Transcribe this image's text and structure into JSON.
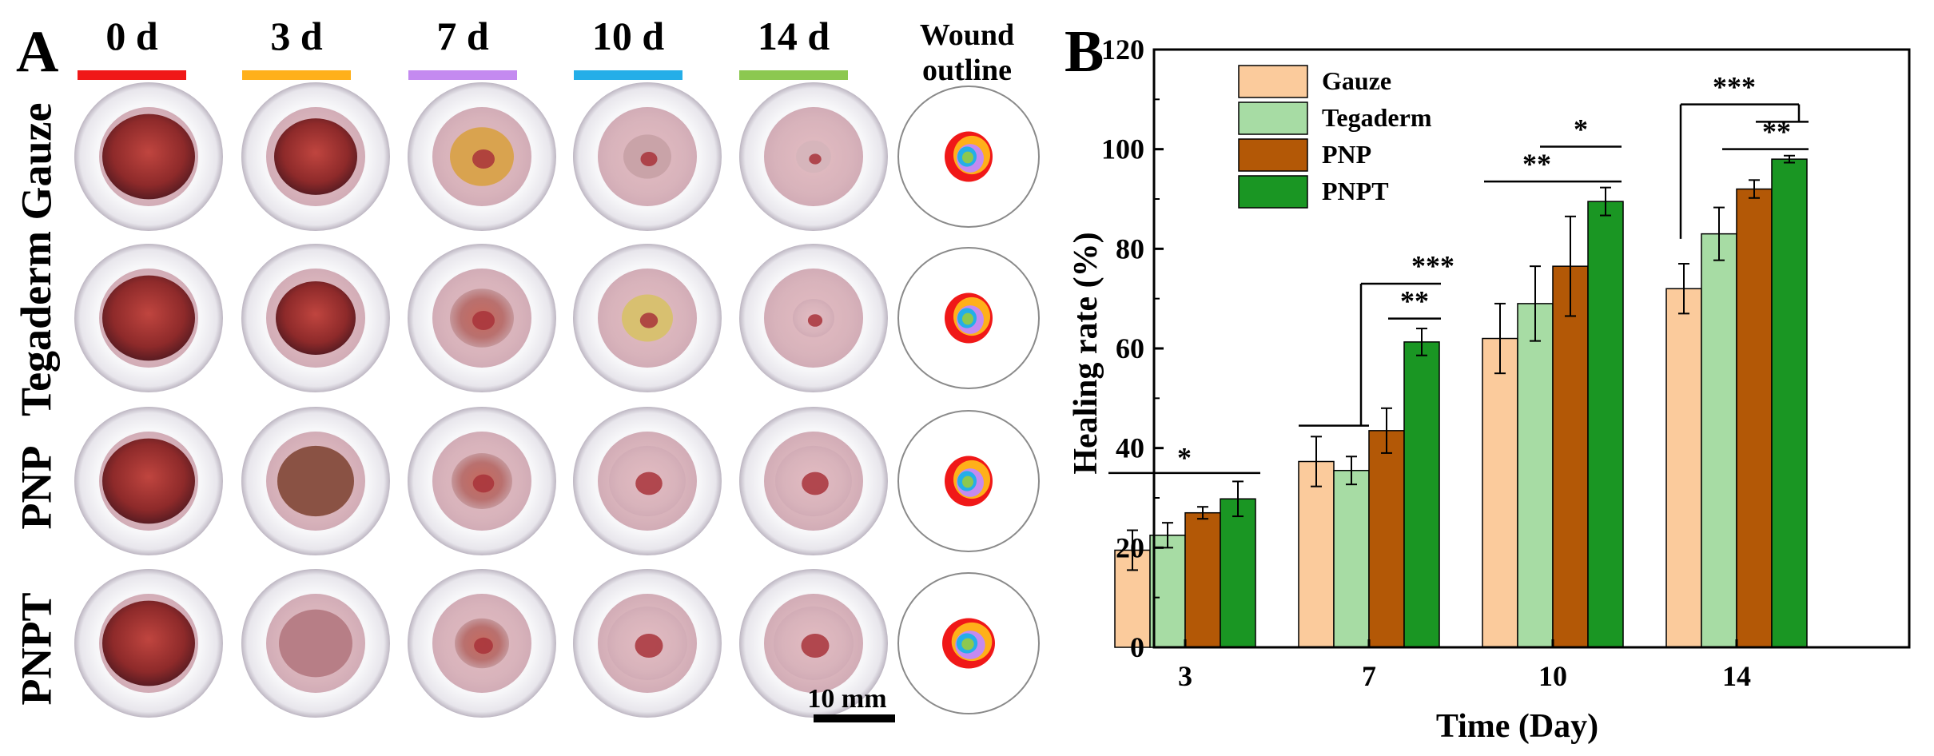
{
  "panel_a": {
    "letter": "A",
    "day_columns": [
      {
        "label": "0 d",
        "color": "#f01818"
      },
      {
        "label": "3 d",
        "color": "#ffb01a"
      },
      {
        "label": "7 d",
        "color": "#c48af0"
      },
      {
        "label": "10 d",
        "color": "#24aee8"
      },
      {
        "label": "14 d",
        "color": "#8cc850"
      }
    ],
    "outline_title_line1": "Wound",
    "outline_title_line2": "outline",
    "rows": [
      "Gauze",
      "Tegaderm",
      "PNP",
      "PNPT"
    ],
    "scale_bar_label": "10 mm"
  },
  "panel_b": {
    "letter": "B"
  },
  "chart_data": {
    "type": "bar",
    "title": "",
    "xlabel": "Time (Day)",
    "ylabel": "Healing rate (%)",
    "categories": [
      "3",
      "7",
      "10",
      "14"
    ],
    "ylim": [
      0,
      120
    ],
    "yticks": [
      0,
      20,
      40,
      60,
      80,
      100,
      120
    ],
    "legend_position": "top-left",
    "series": [
      {
        "name": "Gauze",
        "color": "#fbcb9c",
        "values": [
          19.5,
          37.3,
          62.0,
          72.0
        ],
        "errors": [
          4.0,
          5.0,
          7.0,
          5.0
        ]
      },
      {
        "name": "Tegaderm",
        "color": "#a7dca4",
        "values": [
          22.5,
          35.5,
          69.0,
          83.0
        ],
        "errors": [
          2.5,
          2.8,
          7.5,
          5.3
        ]
      },
      {
        "name": "PNP",
        "color": "#b35806",
        "values": [
          27.0,
          43.5,
          76.5,
          92.0
        ],
        "errors": [
          1.2,
          4.5,
          10.0,
          1.8
        ]
      },
      {
        "name": "PNPT",
        "color": "#1a9623",
        "values": [
          29.8,
          61.3,
          89.5,
          98.0
        ],
        "errors": [
          3.5,
          2.7,
          2.8,
          0.7
        ]
      }
    ],
    "significance": [
      {
        "category": "3",
        "label": "*",
        "from_series": "Gauze",
        "to_series": "PNPT"
      },
      {
        "category": "7",
        "label": "***",
        "from_series": "Gauze,Tegaderm",
        "to_series": "PNPT"
      },
      {
        "category": "7",
        "label": "**",
        "from_series": "PNP",
        "to_series": "PNPT"
      },
      {
        "category": "10",
        "label": "*",
        "from_series": "Tegaderm",
        "to_series": "PNPT"
      },
      {
        "category": "10",
        "label": "**",
        "from_series": "Gauze",
        "to_series": "PNPT"
      },
      {
        "category": "14",
        "label": "***",
        "from_series": "Gauze",
        "to_series": "PNP,PNPT"
      },
      {
        "category": "14",
        "label": "**",
        "from_series": "Tegaderm",
        "to_series": "PNPT"
      }
    ]
  }
}
